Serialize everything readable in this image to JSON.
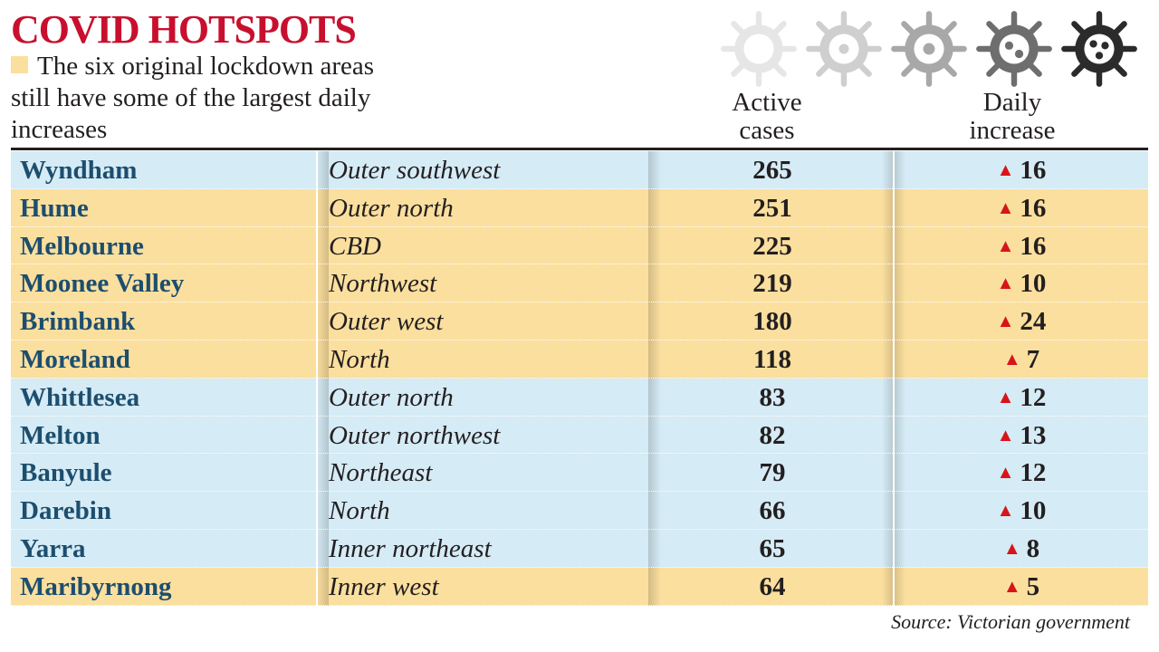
{
  "header": {
    "title": "COVID HOTSPOTS",
    "subtitle": "The six original lockdown areas still have some of the largest daily increases"
  },
  "columns": {
    "active_line1": "Active",
    "active_line2": "cases",
    "daily_line1": "Daily",
    "daily_line2": "increase"
  },
  "colors": {
    "title": "#c8102e",
    "lockdown_highlight": "#fbdf9e",
    "other_row": "#d5ebf5",
    "area_text": "#1c4e6e",
    "increase_arrow": "#d7141a"
  },
  "icons": [
    "virus-icon",
    "virus-icon",
    "virus-icon",
    "virus-icon",
    "virus-icon"
  ],
  "chart_data": {
    "type": "table",
    "title": "COVID HOTSPOTS",
    "subtitle": "The six original lockdown areas still have some of the largest daily increases",
    "columns": [
      "",
      "",
      "Active cases",
      "Daily increase"
    ],
    "rows": [
      {
        "area": "Wyndham",
        "region": "Outer southwest",
        "active": 265,
        "daily": 16,
        "lockdown": false
      },
      {
        "area": "Hume",
        "region": "Outer north",
        "active": 251,
        "daily": 16,
        "lockdown": true
      },
      {
        "area": "Melbourne",
        "region": "CBD",
        "active": 225,
        "daily": 16,
        "lockdown": true
      },
      {
        "area": "Moonee Valley",
        "region": "Northwest",
        "active": 219,
        "daily": 10,
        "lockdown": true
      },
      {
        "area": "Brimbank",
        "region": "Outer west",
        "active": 180,
        "daily": 24,
        "lockdown": true
      },
      {
        "area": "Moreland",
        "region": "North",
        "active": 118,
        "daily": 7,
        "lockdown": true
      },
      {
        "area": "Whittlesea",
        "region": "Outer north",
        "active": 83,
        "daily": 12,
        "lockdown": false
      },
      {
        "area": "Melton",
        "region": "Outer northwest",
        "active": 82,
        "daily": 13,
        "lockdown": false
      },
      {
        "area": "Banyule",
        "region": "Northeast",
        "active": 79,
        "daily": 12,
        "lockdown": false
      },
      {
        "area": "Darebin",
        "region": "North",
        "active": 66,
        "daily": 10,
        "lockdown": false
      },
      {
        "area": "Yarra",
        "region": "Inner northeast",
        "active": 65,
        "daily": 8,
        "lockdown": false
      },
      {
        "area": "Maribyrnong",
        "region": "Inner west",
        "active": 64,
        "daily": 5,
        "lockdown": true
      }
    ],
    "source": "Source: Victorian government"
  }
}
